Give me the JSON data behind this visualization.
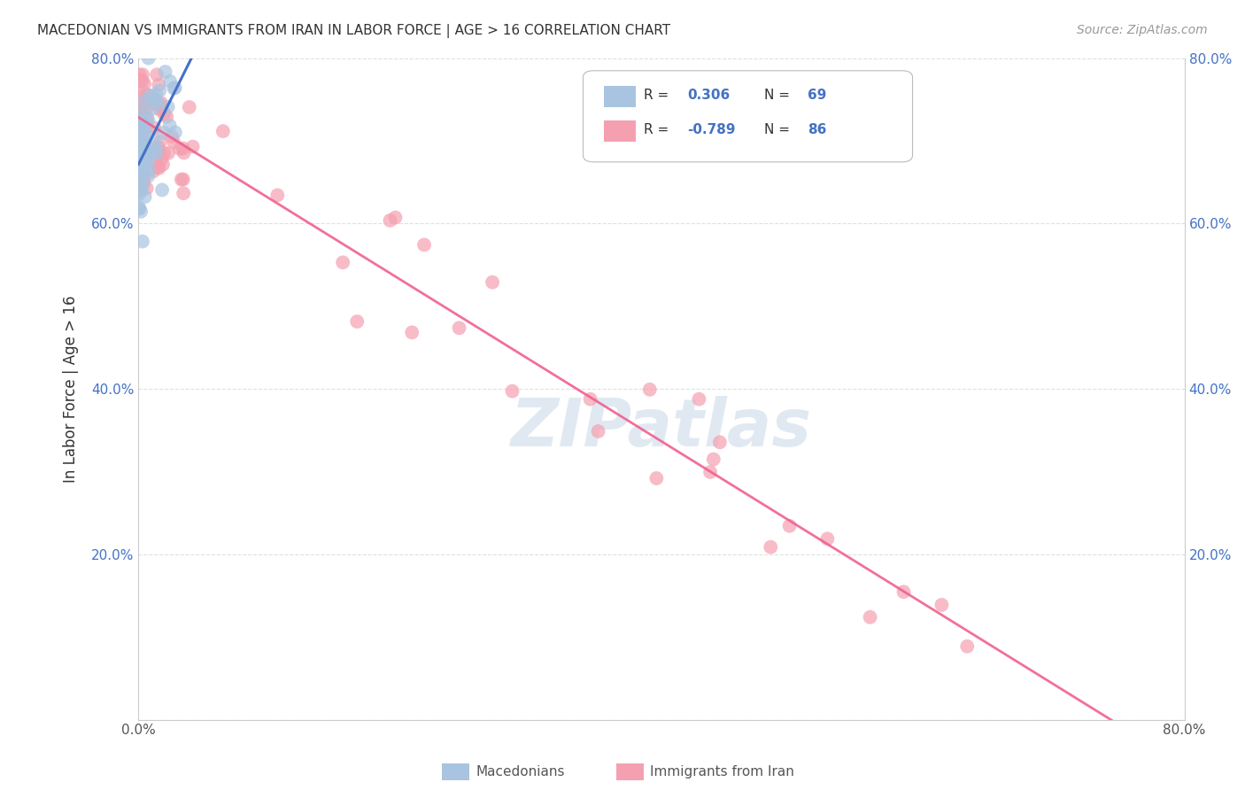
{
  "title": "MACEDONIAN VS IMMIGRANTS FROM IRAN IN LABOR FORCE | AGE > 16 CORRELATION CHART",
  "source": "Source: ZipAtlas.com",
  "ylabel": "In Labor Force | Age > 16",
  "xlim": [
    0.0,
    0.8
  ],
  "ylim": [
    0.0,
    0.8
  ],
  "macedonian_R": 0.306,
  "macedonian_N": 69,
  "iran_R": -0.789,
  "iran_N": 86,
  "macedonian_color": "#a8c4e0",
  "iran_color": "#f4a0b0",
  "macedonian_line_color": "#4472C4",
  "iran_line_color": "#F06090",
  "watermark": "ZIPatlas",
  "background_color": "#ffffff",
  "grid_color": "#e0e0e0"
}
